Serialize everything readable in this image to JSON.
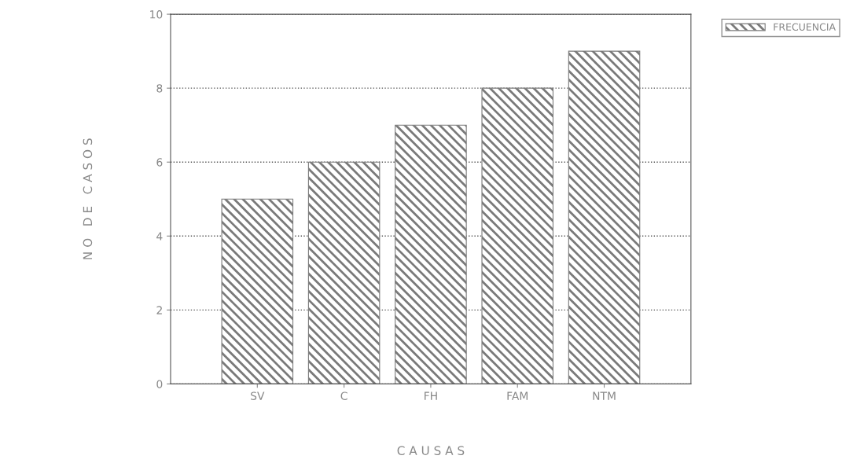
{
  "chart_data": {
    "type": "bar",
    "xlabel": "C A U S A S",
    "ylabel": "N O   D E   C A S O S",
    "categories": [
      "SV",
      "C",
      "FH",
      "FAM",
      "NTM"
    ],
    "series": [
      {
        "name": "FRECUENCIA",
        "color": "#7a7a7a",
        "values": [
          5,
          6,
          7,
          8,
          9
        ]
      }
    ],
    "ylim": [
      0,
      10
    ],
    "yticks": [
      0,
      2,
      4,
      6,
      8,
      10
    ],
    "grid": "y",
    "legend": "top right"
  }
}
